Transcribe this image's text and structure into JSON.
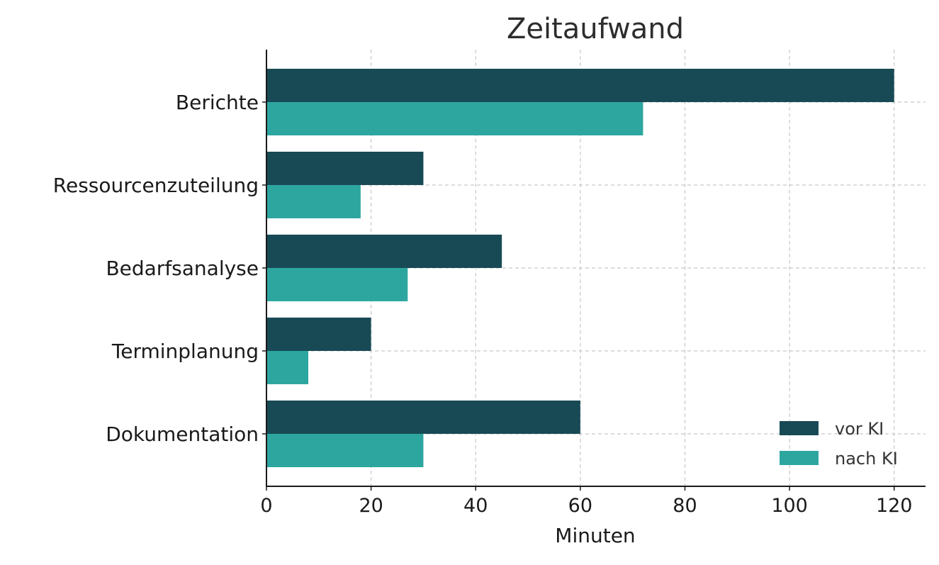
{
  "chart_data": {
    "type": "bar",
    "orientation": "horizontal",
    "title": "Zeitaufwand",
    "xlabel": "Minuten",
    "ylabel": "",
    "xlim": [
      0,
      126
    ],
    "xticks": [
      0,
      20,
      40,
      60,
      80,
      100,
      120
    ],
    "categories": [
      "Berichte",
      "Ressourcenzuteilung",
      "Bedarfsanalyse",
      "Terminplanung",
      "Dokumentation"
    ],
    "series": [
      {
        "name": "vor KI",
        "color": "#184a55",
        "values": [
          120,
          30,
          45,
          20,
          60
        ]
      },
      {
        "name": "nach KI",
        "color": "#2ea6a0",
        "values": [
          72,
          18,
          27,
          8,
          30
        ]
      }
    ],
    "grid": true,
    "legend_position": "lower-right"
  }
}
